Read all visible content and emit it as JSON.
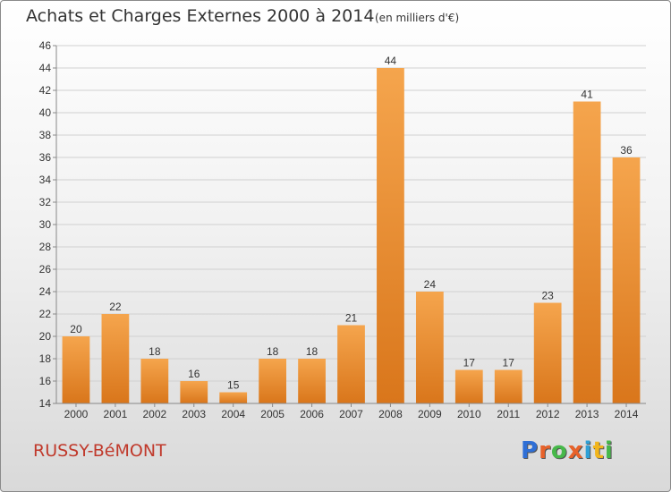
{
  "title": "Achats et Charges Externes 2000 à 2014",
  "unit": "(en milliers d'€)",
  "commune": "RUSSY-BéMONT",
  "brand": {
    "letters": [
      "P",
      "r",
      "o",
      "x",
      "i",
      "t",
      "i"
    ],
    "colors": [
      "#2f6fd6",
      "#e8622a",
      "#47b84a",
      "#e8622a",
      "#2fa0d6",
      "#f2b51c",
      "#47b84a"
    ]
  },
  "colors": {
    "bar_top": "#f5a54d",
    "bar_bottom": "#d9761b",
    "commune": "#c0392b"
  },
  "chart_data": {
    "type": "bar",
    "title": "Achats et Charges Externes 2000 à 2014",
    "xlabel": "",
    "ylabel": "",
    "categories": [
      "2000",
      "2001",
      "2002",
      "2003",
      "2004",
      "2005",
      "2006",
      "2007",
      "2008",
      "2009",
      "2010",
      "2011",
      "2012",
      "2013",
      "2014"
    ],
    "values": [
      20,
      22,
      18,
      16,
      15,
      18,
      18,
      21,
      44,
      24,
      17,
      17,
      23,
      41,
      36
    ],
    "ylim": [
      14,
      46
    ],
    "yticks": [
      14,
      16,
      18,
      20,
      22,
      24,
      26,
      28,
      30,
      32,
      34,
      36,
      38,
      40,
      42,
      44,
      46
    ],
    "grid": true
  }
}
